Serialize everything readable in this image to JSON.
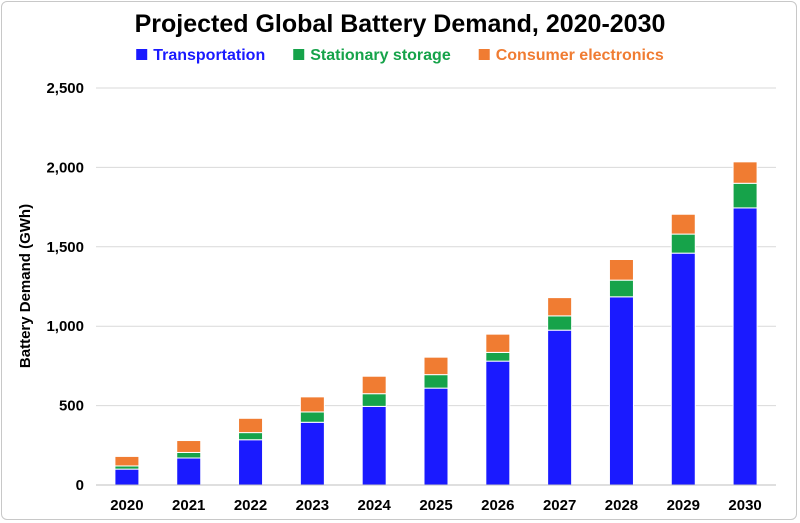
{
  "chart_data": {
    "type": "bar",
    "stacked": true,
    "title": "Projected Global Battery Demand, 2020-2030",
    "xlabel": "",
    "ylabel": "Battery Demand (GWh)",
    "ylim": [
      0,
      2500
    ],
    "yticks": [
      0,
      500,
      1000,
      1500,
      2000,
      2500
    ],
    "ytick_labels": [
      "0",
      "500",
      "1,000",
      "1,500",
      "2,000",
      "2,500"
    ],
    "grid": true,
    "legend_position": "top",
    "categories": [
      "2020",
      "2021",
      "2022",
      "2023",
      "2024",
      "2025",
      "2026",
      "2027",
      "2028",
      "2029",
      "2030"
    ],
    "series": [
      {
        "name": "Transportation",
        "color": "#1a1aff",
        "values": [
          100,
          170,
          285,
          395,
          495,
          610,
          780,
          975,
          1185,
          1460,
          1745
        ]
      },
      {
        "name": "Stationary storage",
        "color": "#16a34a",
        "values": [
          20,
          35,
          45,
          65,
          80,
          85,
          55,
          90,
          105,
          120,
          155
        ]
      },
      {
        "name": "Consumer electronics",
        "color": "#f07c32",
        "values": [
          60,
          75,
          90,
          95,
          110,
          110,
          115,
          115,
          130,
          125,
          135
        ]
      }
    ]
  }
}
